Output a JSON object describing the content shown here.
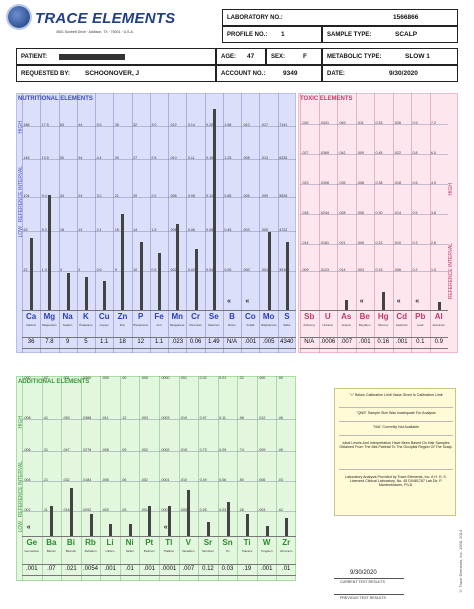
{
  "logo": {
    "title": "TRACE ELEMENTS",
    "address": "4501 Sunbelt Drive · Addison, TX · 75001 · U.S.A."
  },
  "header": {
    "laboratory_no_label": "LABORATORY NO.:",
    "laboratory_no": "1566866",
    "profile_no_label": "PROFILE NO.:",
    "profile_no": "1",
    "sample_type_label": "SAMPLE TYPE:",
    "sample_type": "SCALP",
    "patient_label": "PATIENT:",
    "patient": "",
    "age_label": "AGE:",
    "age": "47",
    "sex_label": "SEX:",
    "sex": "F",
    "metabolic_type_label": "METABOLIC TYPE:",
    "metabolic_type": "SLOW 1",
    "requested_by_label": "REQUESTED BY:",
    "requested_by": "SCHOONOVER, J",
    "account_no_label": "ACCOUNT NO.:",
    "account_no": "9349",
    "date_label": "DATE:",
    "date": "9/30/2020"
  },
  "nutritional": {
    "title": "NUTRITIONAL ELEMENTS",
    "side_high": "HIGH",
    "side_ref": "REFERENCE INTERVAL",
    "side_low": "LOW",
    "elements": [
      {
        "sym": "Ca",
        "name": "Calcium",
        "value": "36",
        "ticks": [
          "186",
          "145",
          "104",
          "63",
          "22"
        ],
        "level": 0.35
      },
      {
        "sym": "Mg",
        "name": "Magnesium",
        "value": "7.8",
        "ticks": [
          "17.5",
          "13.5",
          "9.4",
          "5.3",
          "1.3"
        ],
        "level": 0.56
      },
      {
        "sym": "Na",
        "name": "Sodium",
        "value": "9",
        "ticks": [
          "63",
          "50",
          "34",
          "18",
          "3"
        ],
        "level": 0.18
      },
      {
        "sym": "K",
        "name": "Potassium",
        "value": "5",
        "ticks": [
          "44",
          "34",
          "24",
          "13",
          "2"
        ],
        "level": 0.16
      },
      {
        "sym": "Cu",
        "name": "Copper",
        "value": "1.1",
        "ticks": [
          "5.5",
          "4.4",
          "3.2",
          "2.1",
          "0.9"
        ],
        "level": 0.14
      },
      {
        "sym": "Zn",
        "name": "Zinc",
        "value": "18",
        "ticks": [
          "35",
          "29",
          "21",
          "15",
          "9"
        ],
        "level": 0.47
      },
      {
        "sym": "P",
        "name": "Phosphorus",
        "value": "12",
        "ticks": [
          "32",
          "27",
          "20",
          "14",
          "10"
        ],
        "level": 0.33
      },
      {
        "sym": "Fe",
        "name": "Iron",
        "value": "1.1",
        "ticks": [
          "3.0",
          "2.5",
          "2.0",
          "1.5",
          "0.5"
        ],
        "level": 0.28
      },
      {
        "sym": "Mn",
        "name": "Manganese",
        "value": ".023",
        "ticks": [
          ".012",
          ".010",
          ".008",
          ".006",
          ".002"
        ],
        "level": 0.42
      },
      {
        "sym": "Cr",
        "name": "Chromium",
        "value": "0.06",
        "ticks": [
          "0.14",
          "0.11",
          "0.08",
          "0.06",
          "0.02"
        ],
        "level": 0.3
      },
      {
        "sym": "Se",
        "name": "Selenium",
        "value": "1.49",
        "ticks": [
          "0.20",
          "0.16",
          "0.12",
          "0.08",
          "0.04"
        ],
        "level": 0.98
      },
      {
        "sym": "B",
        "name": "Boron",
        "value": "N/A",
        "ticks": [
          "1.66",
          "1.25",
          "0.85",
          "0.45",
          "0.05"
        ],
        "level": 0
      },
      {
        "sym": "Co",
        "name": "Cobalt",
        "value": ".001",
        "ticks": [
          ".010",
          ".008",
          ".005",
          ".003",
          ".000"
        ],
        "level": 0
      },
      {
        "sym": "Mo",
        "name": "Molybdenum",
        "value": ".005",
        "ticks": [
          ".017",
          ".013",
          ".009",
          ".005",
          ".001"
        ],
        "level": 0.38
      },
      {
        "sym": "S",
        "name": "Sulfur",
        "value": "4340",
        "ticks": [
          "7141",
          "6335",
          "5528",
          "4722",
          "3916"
        ],
        "level": 0.33
      }
    ],
    "low_chevrons": [
      11,
      12
    ]
  },
  "toxic": {
    "title": "TOXIC ELEMENTS",
    "side_high": "HIGH",
    "side_ref": "REFERENCE INTERVAL",
    "elements": [
      {
        "sym": "Sb",
        "name": "Antimony",
        "value": "N/A",
        "ticks": [
          ".032",
          ".027",
          ".023",
          ".018",
          ".014",
          ".009"
        ],
        "level": 0
      },
      {
        "sym": "U",
        "name": "Uranium",
        "value": ".0006",
        "ticks": [
          ".0431",
          ".0369",
          ".0306",
          ".0244",
          ".0181",
          ".0123"
        ],
        "level": 0
      },
      {
        "sym": "As",
        "name": "Arsenic",
        "value": ".007",
        "ticks": [
          ".049",
          ".042",
          ".035",
          ".028",
          ".021",
          ".014"
        ],
        "level": 0.1
      },
      {
        "sym": "Be",
        "name": "Beryllium",
        "value": ".001",
        "ticks": [
          ".011",
          ".009",
          ".008",
          ".006",
          ".005",
          ".003"
        ],
        "level": 0
      },
      {
        "sym": "Hg",
        "name": "Mercury",
        "value": "0.16",
        "ticks": [
          "0.53",
          "0.45",
          "0.38",
          "0.30",
          "0.23",
          "0.15"
        ],
        "level": 0.18
      },
      {
        "sym": "Cd",
        "name": "Cadmium",
        "value": ".001",
        "ticks": [
          ".026",
          ".022",
          ".018",
          ".014",
          ".010",
          ".006"
        ],
        "level": 0
      },
      {
        "sym": "Pb",
        "name": "Lead",
        "value": "0.1",
        "ticks": [
          "0.9",
          "0.8",
          "0.6",
          "0.5",
          "0.3",
          "0.2"
        ],
        "level": 0
      },
      {
        "sym": "Al",
        "name": "Aluminum",
        "value": "0.9",
        "ticks": [
          "7.2",
          "6.0",
          "4.9",
          "3.8",
          "2.6",
          "1.5"
        ],
        "level": 0.08
      }
    ],
    "low_chevrons": [
      3,
      5,
      6
    ]
  },
  "additional": {
    "title": "ADDITIONAL ELEMENTS",
    "side_high": "HIGH",
    "side_ref": "REFERENCE INTERVAL",
    "side_low": "LOW",
    "elements": [
      {
        "sym": "Ge",
        "name": "Germanium",
        "value": ".001",
        "ticks": [
          ".008",
          ".006",
          ".004",
          ".002",
          ".000"
        ],
        "level": 0
      },
      {
        "sym": "Ba",
        "name": "Barium",
        "value": ".07",
        "ticks": [
          ".41",
          ".31",
          ".21",
          ".11",
          ".02"
        ],
        "level": 0.25
      },
      {
        "sym": "Bi",
        "name": "Bismuth",
        "value": ".021",
        "ticks": [
          ".063",
          ".047",
          ".032",
          ".016",
          ".001"
        ],
        "level": 0.4
      },
      {
        "sym": "Rb",
        "name": "Rubidium",
        "value": ".0054",
        "ticks": [
          ".0368",
          ".0276",
          ".0184",
          ".0092",
          ".0000"
        ],
        "level": 0.18
      },
      {
        "sym": "Li",
        "name": "Lithium",
        "value": ".001",
        "ticks": [
          ".011",
          ".008",
          ".006",
          ".003",
          ".000"
        ],
        "level": 0.1
      },
      {
        "sym": "Ni",
        "name": "Nickel",
        "value": ".01",
        "ticks": [
          ".12",
          ".09",
          ".06",
          ".03",
          ".00"
        ],
        "level": 0.1
      },
      {
        "sym": "Pt",
        "name": "Platinum",
        "value": ".001",
        "ticks": [
          ".003",
          ".002",
          ".002",
          ".001",
          ".000"
        ],
        "level": 0.25
      },
      {
        "sym": "Tl",
        "name": "Thallium",
        "value": ".0001",
        "ticks": [
          ".0003",
          ".0002",
          ".0001",
          ".0001",
          ".0000"
        ],
        "level": 0.25
      },
      {
        "sym": "V",
        "name": "Vanadium",
        "value": ".007",
        "ticks": [
          ".019",
          ".015",
          ".010",
          ".005",
          ".001"
        ],
        "level": 0.38
      },
      {
        "sym": "Sr",
        "name": "Strontium",
        "value": "0.12",
        "ticks": [
          "0.97",
          "0.73",
          "0.49",
          "0.25",
          "0.02"
        ],
        "level": 0.12
      },
      {
        "sym": "Sn",
        "name": "Tin",
        "value": "0.03",
        "ticks": [
          "0.11",
          "0.09",
          "0.06",
          "0.03",
          "0.01"
        ],
        "level": 0.28
      },
      {
        "sym": "Ti",
        "name": "Titanium",
        "value": ".19",
        "ticks": [
          ".98",
          ".74",
          ".50",
          ".26",
          ".02"
        ],
        "level": 0.18
      },
      {
        "sym": "W",
        "name": "Tungsten",
        "value": ".001",
        "ticks": [
          ".012",
          ".009",
          ".006",
          ".003",
          ".000"
        ],
        "level": 0.08
      },
      {
        "sym": "Zr",
        "name": "Zirconium",
        "value": ".01",
        "ticks": [
          ".06",
          ".05",
          ".03",
          ".02",
          ".00"
        ],
        "level": 0.15
      }
    ],
    "low_chevrons": [
      0,
      7
    ]
  },
  "notes": [
    "\"<\" Below Calibration Limit Value Given Is Calibration Limit",
    "\"QNS\" Sample Size Was Inadequate For Analysis",
    "\"N/A\" Currently Not Available",
    "Ideal Levels And Interpretation Have Been Based On Hair Samples Obtained From The Mid-Parietal To The Occipital Region Of The Scalp.",
    "Laboratory Analysis Provided by Trace Elements, Inc. A H. H. S. Licensed Clinical Laboratory, No. 45 D0481787 Lab Dir. P. Mardenbrauen, Ph.D."
  ],
  "footer": {
    "date": "9/30/2020",
    "current_label": "CURRENT TEST RESULTS",
    "previous_label": "PREVIOUS TEST RESULTS",
    "copyright": "© Trace Elements, Inc. 1998, 2014"
  },
  "colors": {
    "nutritional_bg": "#dcdffa",
    "toxic_bg": "#fde6ee",
    "additional_bg": "#e2f7de",
    "bar": "#444444"
  }
}
